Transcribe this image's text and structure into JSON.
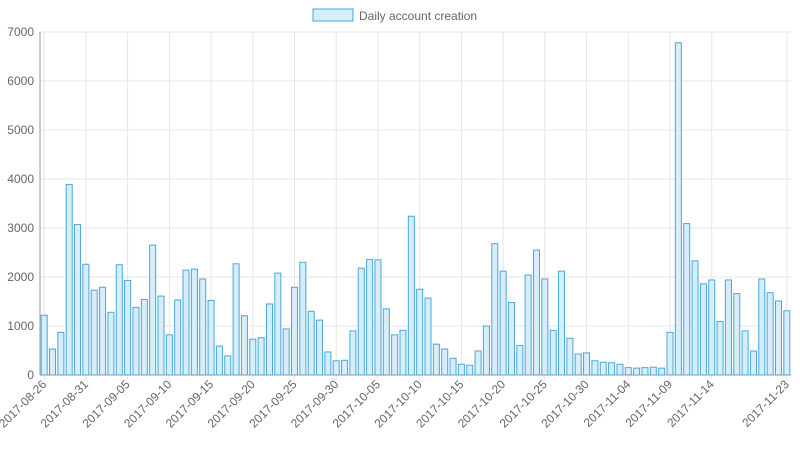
{
  "colors": {
    "bar_fill": "#d6eefb",
    "bar_stroke": "#4aa8d4",
    "grid": "#e6e6e6",
    "axis": "#999999"
  },
  "chart_data": {
    "type": "bar",
    "title": "",
    "xlabel": "",
    "ylabel": "",
    "legend": {
      "position": "top",
      "entries": [
        "Daily account creation"
      ]
    },
    "grid": true,
    "ylim": [
      0,
      7000
    ],
    "yticks": [
      0,
      1000,
      2000,
      3000,
      4000,
      5000,
      6000,
      7000
    ],
    "xtick_labels": [
      "2017-08-26",
      "2017-08-31",
      "2017-09-05",
      "2017-09-10",
      "2017-09-15",
      "2017-09-20",
      "2017-09-25",
      "2017-09-30",
      "2017-10-05",
      "2017-10-10",
      "2017-10-15",
      "2017-10-20",
      "2017-10-25",
      "2017-10-30",
      "2017-11-04",
      "2017-11-09",
      "2017-11-14",
      "2017-11-23"
    ],
    "series": [
      {
        "name": "Daily account creation",
        "values": [
          1220,
          530,
          870,
          3890,
          3070,
          2260,
          1730,
          1790,
          1280,
          2250,
          1930,
          1380,
          1540,
          2650,
          1610,
          820,
          1530,
          2140,
          2160,
          1960,
          1520,
          590,
          390,
          2270,
          1210,
          730,
          760,
          1450,
          2080,
          940,
          1790,
          2300,
          1300,
          1120,
          470,
          290,
          300,
          900,
          2180,
          2360,
          2350,
          1350,
          820,
          910,
          3240,
          1750,
          1570,
          630,
          530,
          340,
          220,
          200,
          490,
          1000,
          2680,
          2120,
          1480,
          600,
          2040,
          2550,
          1960,
          910,
          2120,
          750,
          430,
          450,
          290,
          260,
          250,
          220,
          150,
          140,
          150,
          160,
          140,
          870,
          6780,
          3090,
          2330,
          1860,
          1940,
          1090,
          1940,
          1660,
          900,
          490,
          1960,
          1680,
          1510,
          1310
        ]
      }
    ]
  }
}
